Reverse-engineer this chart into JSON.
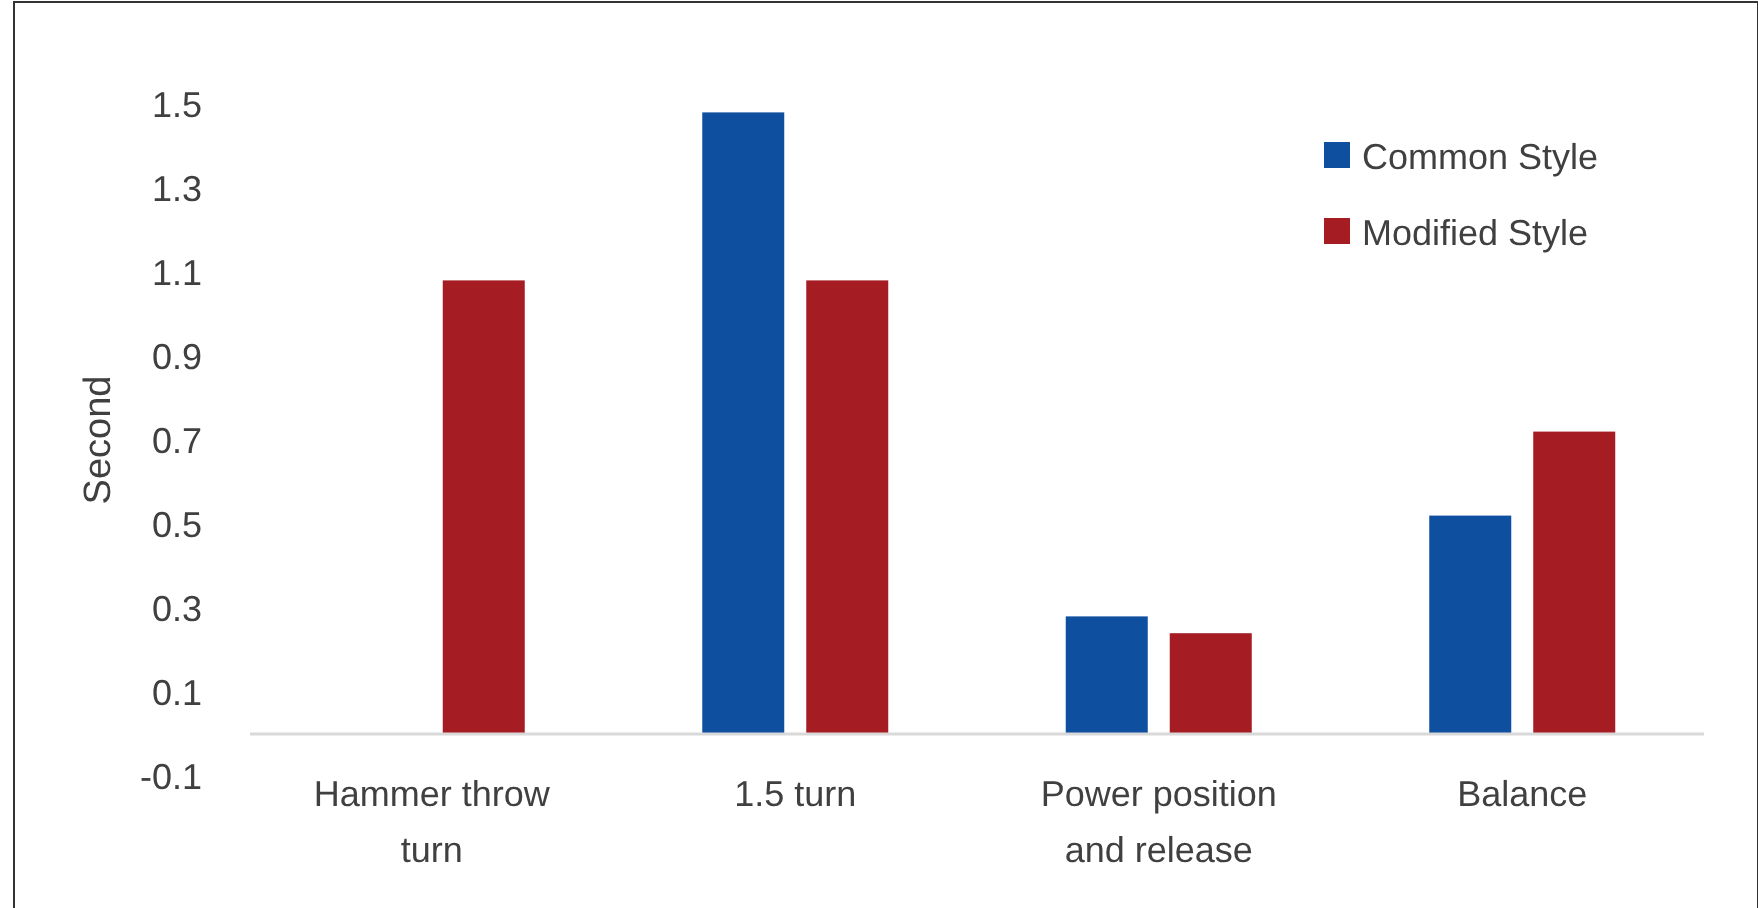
{
  "chart_data": {
    "type": "bar",
    "ylabel": "Second",
    "categories": [
      "Hammer throw turn",
      "1.5 turn",
      "Power position and release",
      "Balance"
    ],
    "series": [
      {
        "name": "Common Style",
        "color": "#0f4fa0",
        "values": [
          null,
          1.48,
          0.28,
          0.52
        ]
      },
      {
        "name": "Modified Style",
        "color": "#a51d23",
        "values": [
          1.08,
          1.08,
          0.24,
          0.72
        ]
      }
    ],
    "ylim": [
      -0.1,
      1.5
    ],
    "yticks": [
      -0.1,
      0.1,
      0.3,
      0.5,
      0.7,
      0.9,
      1.1,
      1.3,
      1.5
    ],
    "grid": false,
    "legend": "top right"
  }
}
